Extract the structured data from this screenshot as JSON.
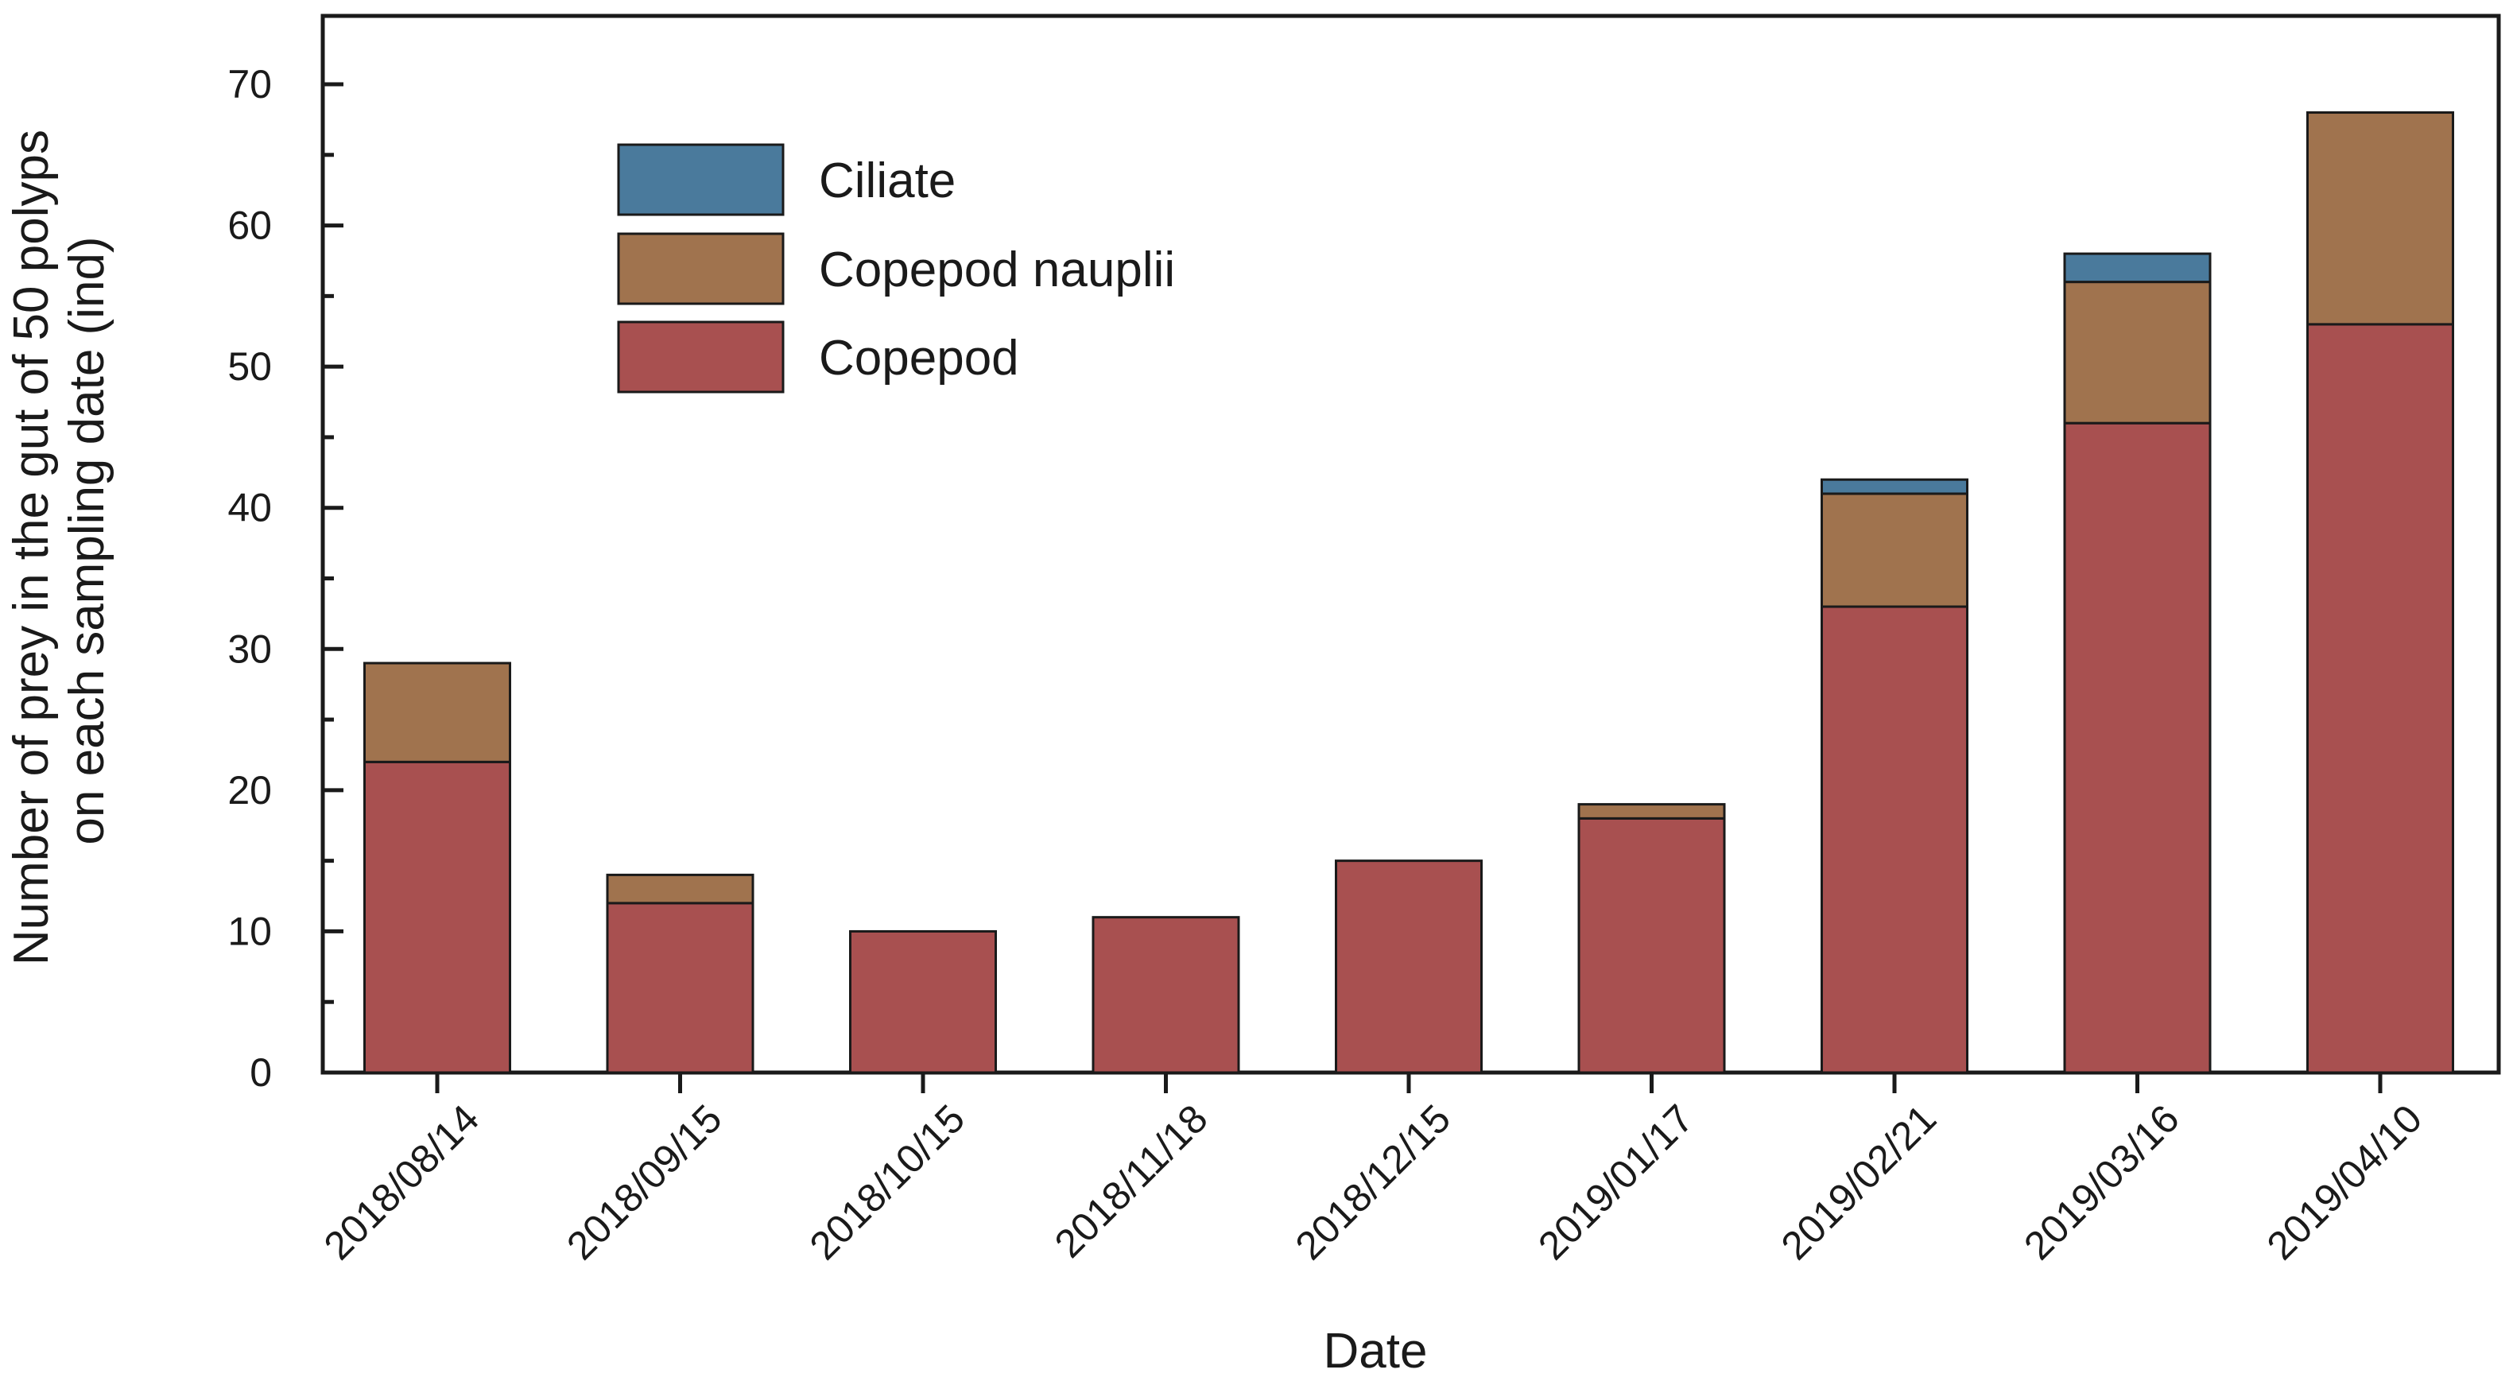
{
  "chart_data": {
    "type": "bar",
    "stacked": true,
    "xlabel": "Date",
    "ylabel_line1": "Number of prey in the gut of 50 polyps",
    "ylabel_line2": "on each sampling date (ind)",
    "ylim": [
      0,
      75
    ],
    "yticks": [
      0,
      10,
      20,
      30,
      40,
      50,
      60,
      70
    ],
    "grid": false,
    "legend_position": "top-left",
    "categories": [
      "2018/08/14",
      "2018/09/15",
      "2018/10/15",
      "2018/11/18",
      "2018/12/15",
      "2019/01/17",
      "2019/02/21",
      "2019/03/16",
      "2019/04/10"
    ],
    "series": [
      {
        "name": "Copepod",
        "color": "#a85050",
        "values": [
          22,
          12,
          10,
          11,
          15,
          18,
          33,
          46,
          53
        ]
      },
      {
        "name": "Copepod nauplii",
        "color": "#a0734e",
        "values": [
          7,
          2,
          0,
          0,
          0,
          1,
          8,
          10,
          15
        ]
      },
      {
        "name": "Ciliate",
        "color": "#4a7a9c",
        "values": [
          0,
          0,
          0,
          0,
          0,
          0,
          1,
          2,
          0
        ]
      }
    ],
    "legend_order": [
      "Ciliate",
      "Copepod nauplii",
      "Copepod"
    ]
  }
}
